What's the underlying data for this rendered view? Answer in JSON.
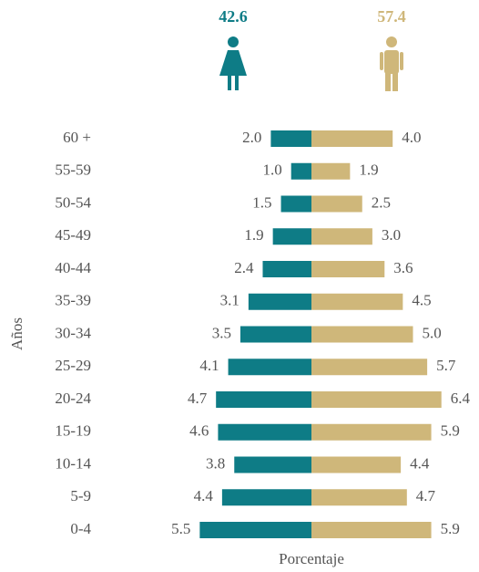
{
  "chart_data": {
    "type": "pyramid",
    "y_label": "Años",
    "x_label": "Porcentaje",
    "categories": [
      "60 +",
      "55-59",
      "50-54",
      "45-49",
      "40-44",
      "35-39",
      "30-34",
      "25-29",
      "20-24",
      "15-19",
      "10-14",
      "5-9",
      "0-4"
    ],
    "series": [
      {
        "color": "#0e7c86",
        "total": 42.6,
        "side": "left",
        "values": [
          2.0,
          1.0,
          1.5,
          1.9,
          2.4,
          3.1,
          3.5,
          4.1,
          4.7,
          4.6,
          3.8,
          4.4,
          5.5
        ],
        "value_labels": [
          "2.0",
          "1.0",
          "1.5",
          "1.9",
          "2.4",
          "3.1",
          "3.5",
          "4.1",
          "4.7",
          "4.6",
          "3.8",
          "4.4",
          "5.5"
        ]
      },
      {
        "color": "#cfb77a",
        "total": 57.4,
        "side": "right",
        "values": [
          4.0,
          1.9,
          2.5,
          3.0,
          3.6,
          4.5,
          5.0,
          5.7,
          6.4,
          5.9,
          4.4,
          4.7,
          5.9
        ],
        "value_labels": [
          "4.0",
          "1.9",
          "2.5",
          "3.0",
          "3.6",
          "4.5",
          "5.0",
          "5.7",
          "6.4",
          "5.9",
          "4.4",
          "4.7",
          "5.9"
        ]
      }
    ]
  }
}
